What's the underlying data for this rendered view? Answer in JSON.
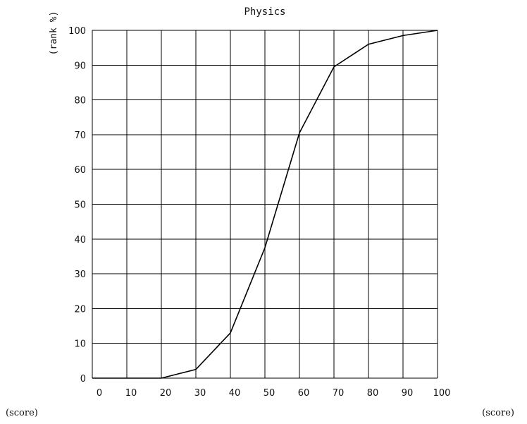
{
  "chart_data": {
    "type": "line",
    "title": "Physics",
    "ylabel": "(rank %)",
    "xlabel_left": "(score)",
    "xlabel_right": "(score)",
    "xlim": [
      0,
      100
    ],
    "ylim": [
      0,
      100
    ],
    "grid": true,
    "x_ticks": [
      0,
      10,
      20,
      30,
      40,
      50,
      60,
      70,
      80,
      90,
      100
    ],
    "y_ticks": [
      0,
      10,
      20,
      30,
      40,
      50,
      60,
      70,
      80,
      90,
      100
    ],
    "series": [
      {
        "x": [
          0,
          10,
          20,
          30,
          40,
          50,
          60,
          70,
          80,
          90,
          100
        ],
        "y": [
          0,
          0,
          0,
          2.5,
          13,
          37.5,
          70.5,
          89.5,
          96,
          98.5,
          100
        ]
      }
    ],
    "color": "#000000"
  }
}
